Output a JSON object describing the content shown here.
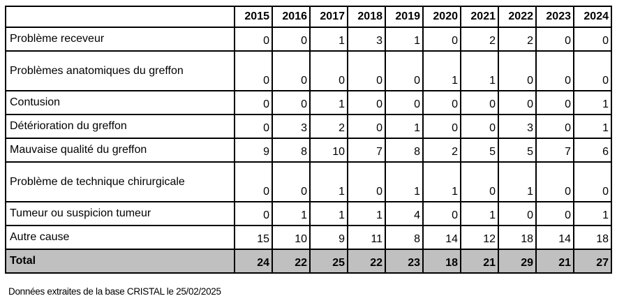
{
  "table": {
    "header": [
      "2015",
      "2016",
      "2017",
      "2018",
      "2019",
      "2020",
      "2021",
      "2022",
      "2023",
      "2024"
    ],
    "rows": [
      {
        "label": "Problème receveur",
        "values": [
          0,
          0,
          1,
          3,
          1,
          0,
          2,
          2,
          0,
          0
        ]
      },
      {
        "label": "Problèmes anatomiques du greffon",
        "values": [
          0,
          0,
          0,
          0,
          0,
          1,
          1,
          0,
          0,
          0
        ]
      },
      {
        "label": "Contusion",
        "values": [
          0,
          0,
          1,
          0,
          0,
          0,
          0,
          0,
          0,
          1
        ]
      },
      {
        "label": "Détérioration du greffon",
        "values": [
          0,
          3,
          2,
          0,
          1,
          0,
          0,
          3,
          0,
          1
        ]
      },
      {
        "label": "Mauvaise qualité du greffon",
        "values": [
          9,
          8,
          10,
          7,
          8,
          2,
          5,
          5,
          7,
          6
        ]
      },
      {
        "label": "Problème de technique chirurgicale",
        "values": [
          0,
          0,
          1,
          0,
          1,
          1,
          0,
          1,
          0,
          0
        ]
      },
      {
        "label": "Tumeur ou suspicion tumeur",
        "values": [
          0,
          1,
          1,
          1,
          4,
          0,
          1,
          0,
          0,
          1
        ]
      },
      {
        "label": "Autre cause",
        "values": [
          15,
          10,
          9,
          11,
          8,
          14,
          12,
          18,
          14,
          18
        ]
      }
    ],
    "total": {
      "label": "Total",
      "values": [
        24,
        22,
        25,
        22,
        23,
        18,
        21,
        29,
        21,
        27
      ]
    }
  },
  "footnote": "Données extraites de la base CRISTAL le 25/02/2025"
}
